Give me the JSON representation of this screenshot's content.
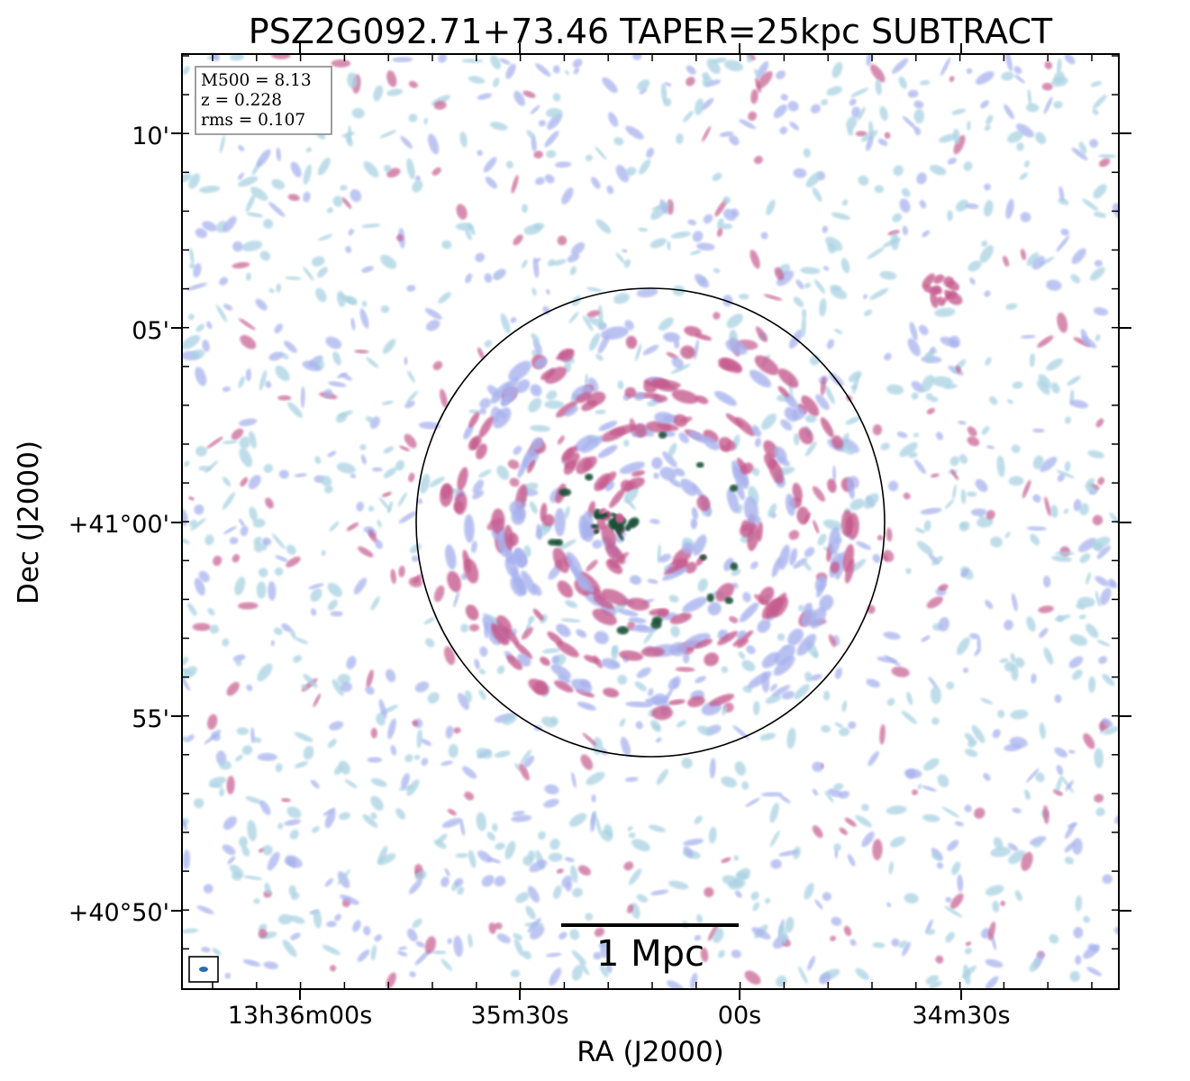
{
  "title": "PSZ2G092.71+73.46 TAPER=25kpc SUBTRACT",
  "info": {
    "m500": "M500 = 8.13",
    "redshift": "z = 0.228",
    "rms": "rms = 0.107"
  },
  "axes": {
    "xlabel": "RA (J2000)",
    "ylabel": "Dec (J2000)",
    "x_ticks": [
      "13h36m00s",
      "35m30s",
      "00s",
      "34m30s"
    ],
    "y_ticks": [
      "10'",
      "05'",
      "+41°00'",
      "55'",
      "+40°50'"
    ]
  },
  "scalebar": {
    "label": "1 Mpc"
  },
  "colors": {
    "low": "#a9d2e2",
    "mid": "#a8b2ee",
    "high": "#c65c8e",
    "peak": "#174f35",
    "circle": "#000000"
  }
}
